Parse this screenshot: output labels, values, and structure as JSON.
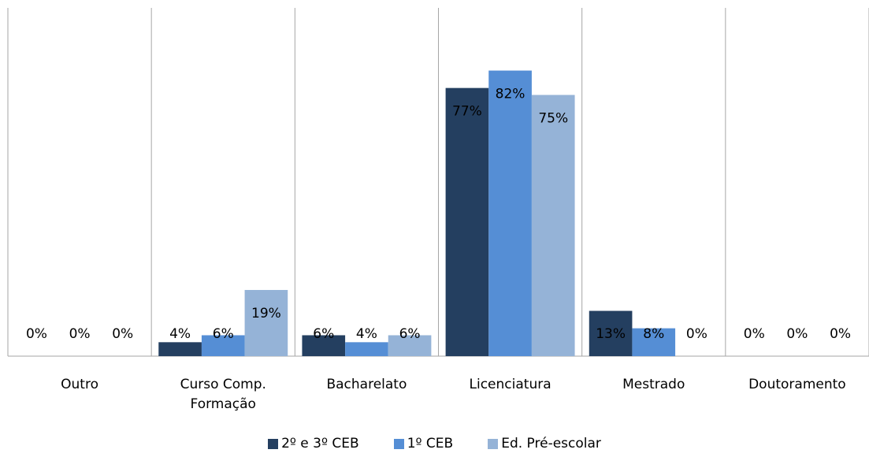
{
  "chart_data": {
    "type": "bar",
    "categories": [
      "Outro",
      "Curso Comp. Formação",
      "Bacharelato",
      "Licenciatura",
      "Mestrado",
      "Doutoramento"
    ],
    "series": [
      {
        "name": "2º e 3º CEB",
        "color": "#243f60",
        "values": [
          0,
          4,
          6,
          77,
          13,
          0
        ],
        "value_labels": [
          "0%",
          "4%",
          "6%",
          "77%",
          "13%",
          "0%"
        ]
      },
      {
        "name": "1º CEB",
        "color": "#558ed5",
        "values": [
          0,
          6,
          4,
          82,
          8,
          0
        ],
        "value_labels": [
          "0%",
          "6%",
          "4%",
          "82%",
          "8%",
          "0%"
        ]
      },
      {
        "name": "Ed. Pré-escolar",
        "color": "#95b3d7",
        "values": [
          0,
          19,
          6,
          75,
          0,
          0
        ],
        "value_labels": [
          "0%",
          "19%",
          "6%",
          "75%",
          "0%",
          "0%"
        ]
      }
    ],
    "ylim": [
      0,
      100
    ],
    "legend": "bottom"
  }
}
